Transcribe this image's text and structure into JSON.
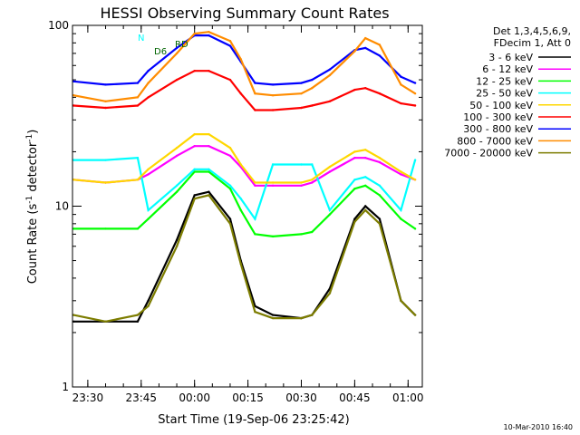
{
  "chart_data": {
    "type": "line",
    "title": "HESSI Observing Summary Count Rates",
    "xlabel": "Start Time (19-Sep-06 23:25:42)",
    "ylabel": "Count Rate (s⁻¹ detector⁻¹)",
    "ylabel_main": "Count Rate (s",
    "ylabel_exp1": "-1",
    "ylabel_mid": " detector",
    "ylabel_exp2": "-1",
    "ylabel_end": ")",
    "y_scale": "log",
    "ylim": [
      1,
      100
    ],
    "y_ticks": [
      1,
      10,
      100
    ],
    "y_tick_labels": [
      "1",
      "10",
      "100"
    ],
    "xlim": [
      "23:25:42",
      "01:04:00"
    ],
    "x_ticks": [
      "23:30",
      "23:45",
      "00:00",
      "00:15",
      "00:30",
      "00:45",
      "01:00"
    ],
    "x_tick_labels": [
      "23:30",
      "23:45",
      "00:00",
      "00:15",
      "00:30",
      "00:45",
      "01:00"
    ],
    "grid": false,
    "legend_header": [
      "Det 1,3,4,5,6,9,",
      "FDecim 1, Att 0"
    ],
    "legend_placement": "right",
    "annotations": {
      "N": "N",
      "RD": "RD",
      "D6": "D6"
    },
    "footer": "10-Mar-2010 16:40",
    "series": [
      {
        "name": "3 - 6 keV",
        "color": "#000000",
        "x": [
          "23:26",
          "23:35",
          "23:44",
          "23:47",
          "23:55",
          "00:00",
          "00:04",
          "00:10",
          "00:13",
          "00:17",
          "00:22",
          "00:30",
          "00:33",
          "00:38",
          "00:45",
          "00:48",
          "00:52",
          "00:58",
          "01:02"
        ],
        "values": [
          2.3,
          2.3,
          2.3,
          3.0,
          6.5,
          11.5,
          12.0,
          8.5,
          5.0,
          2.8,
          2.5,
          2.4,
          2.5,
          3.5,
          8.5,
          10.0,
          8.5,
          3.0,
          2.5
        ]
      },
      {
        "name": "6 - 12 keV",
        "color": "#ff00ff",
        "x": [
          "23:26",
          "23:35",
          "23:44",
          "23:47",
          "23:55",
          "00:00",
          "00:04",
          "00:10",
          "00:13",
          "00:17",
          "00:22",
          "00:30",
          "00:33",
          "00:38",
          "00:45",
          "00:48",
          "00:52",
          "00:58",
          "01:02"
        ],
        "values": [
          14,
          13.5,
          14,
          15,
          19,
          21.5,
          21.5,
          19,
          16.5,
          13,
          13,
          13,
          13.5,
          15.5,
          18.5,
          18.5,
          17.5,
          15,
          14
        ]
      },
      {
        "name": "12 - 25 keV",
        "color": "#00ff00",
        "x": [
          "23:26",
          "23:35",
          "23:44",
          "23:47",
          "23:55",
          "00:00",
          "00:04",
          "00:10",
          "00:13",
          "00:17",
          "00:22",
          "00:30",
          "00:33",
          "00:38",
          "00:45",
          "00:48",
          "00:52",
          "00:58",
          "01:02"
        ],
        "values": [
          7.5,
          7.5,
          7.5,
          8.5,
          12,
          15.5,
          15.5,
          12.5,
          9.5,
          7,
          6.8,
          7,
          7.2,
          9,
          12.5,
          13,
          11.5,
          8.5,
          7.5
        ]
      },
      {
        "name": "25 - 50 keV",
        "color": "#00ffff",
        "x": [
          "23:26",
          "23:35",
          "23:44",
          "23:47",
          "23:55",
          "00:00",
          "00:04",
          "00:10",
          "00:13",
          "00:17",
          "00:22",
          "00:30",
          "00:33",
          "00:38",
          "00:45",
          "00:48",
          "00:52",
          "00:58",
          "01:02"
        ],
        "values": [
          18,
          18,
          18.5,
          9.5,
          13,
          16,
          16,
          13,
          11,
          8.5,
          17,
          17,
          17,
          9.5,
          14,
          14.5,
          13,
          9.5,
          18
        ]
      },
      {
        "name": "50 - 100 keV",
        "color": "#ffd700",
        "x": [
          "23:26",
          "23:35",
          "23:44",
          "23:47",
          "23:55",
          "00:00",
          "00:04",
          "00:10",
          "00:13",
          "00:17",
          "00:22",
          "00:30",
          "00:33",
          "00:38",
          "00:45",
          "00:48",
          "00:52",
          "00:58",
          "01:02"
        ],
        "values": [
          14,
          13.5,
          14,
          16,
          21,
          25,
          25,
          21,
          17,
          13.5,
          13.5,
          13.5,
          14,
          16.5,
          20,
          20.5,
          18.5,
          15.5,
          14
        ]
      },
      {
        "name": "100 - 300 keV",
        "color": "#ff0000",
        "x": [
          "23:26",
          "23:35",
          "23:44",
          "23:47",
          "23:55",
          "00:00",
          "00:04",
          "00:10",
          "00:13",
          "00:17",
          "00:22",
          "00:30",
          "00:33",
          "00:38",
          "00:45",
          "00:48",
          "00:52",
          "00:58",
          "01:02"
        ],
        "values": [
          36,
          35,
          36,
          40,
          50,
          56,
          56,
          50,
          42,
          34,
          34,
          35,
          36,
          38,
          44,
          45,
          42,
          37,
          36
        ]
      },
      {
        "name": "300 - 800 keV",
        "color": "#0000ff",
        "x": [
          "23:26",
          "23:35",
          "23:44",
          "23:47",
          "23:55",
          "00:00",
          "00:04",
          "00:10",
          "00:13",
          "00:17",
          "00:22",
          "00:30",
          "00:33",
          "00:38",
          "00:45",
          "00:48",
          "00:52",
          "00:58",
          "01:02"
        ],
        "values": [
          49,
          47,
          48,
          56,
          75,
          88,
          88,
          77,
          63,
          48,
          47,
          48,
          50,
          57,
          73,
          75,
          68,
          52,
          48
        ]
      },
      {
        "name": "800 - 7000 keV",
        "color": "#ff8c00",
        "x": [
          "23:26",
          "23:35",
          "23:44",
          "23:47",
          "23:55",
          "00:00",
          "00:04",
          "00:10",
          "00:13",
          "00:17",
          "00:22",
          "00:30",
          "00:33",
          "00:38",
          "00:45",
          "00:48",
          "00:52",
          "00:58",
          "01:02"
        ],
        "values": [
          41,
          38,
          40,
          48,
          70,
          90,
          92,
          82,
          65,
          42,
          41,
          42,
          45,
          53,
          72,
          85,
          78,
          47,
          42
        ]
      },
      {
        "name": "7000 - 20000 keV",
        "color": "#7d7d00",
        "x": [
          "23:26",
          "23:35",
          "23:44",
          "23:47",
          "23:55",
          "00:00",
          "00:04",
          "00:10",
          "00:13",
          "00:17",
          "00:22",
          "00:30",
          "00:33",
          "00:38",
          "00:45",
          "00:48",
          "00:52",
          "00:58",
          "01:02"
        ],
        "values": [
          2.5,
          2.3,
          2.5,
          2.8,
          6,
          11,
          11.5,
          8,
          4.8,
          2.6,
          2.4,
          2.4,
          2.5,
          3.3,
          8.2,
          9.5,
          8,
          3,
          2.5
        ]
      }
    ]
  }
}
